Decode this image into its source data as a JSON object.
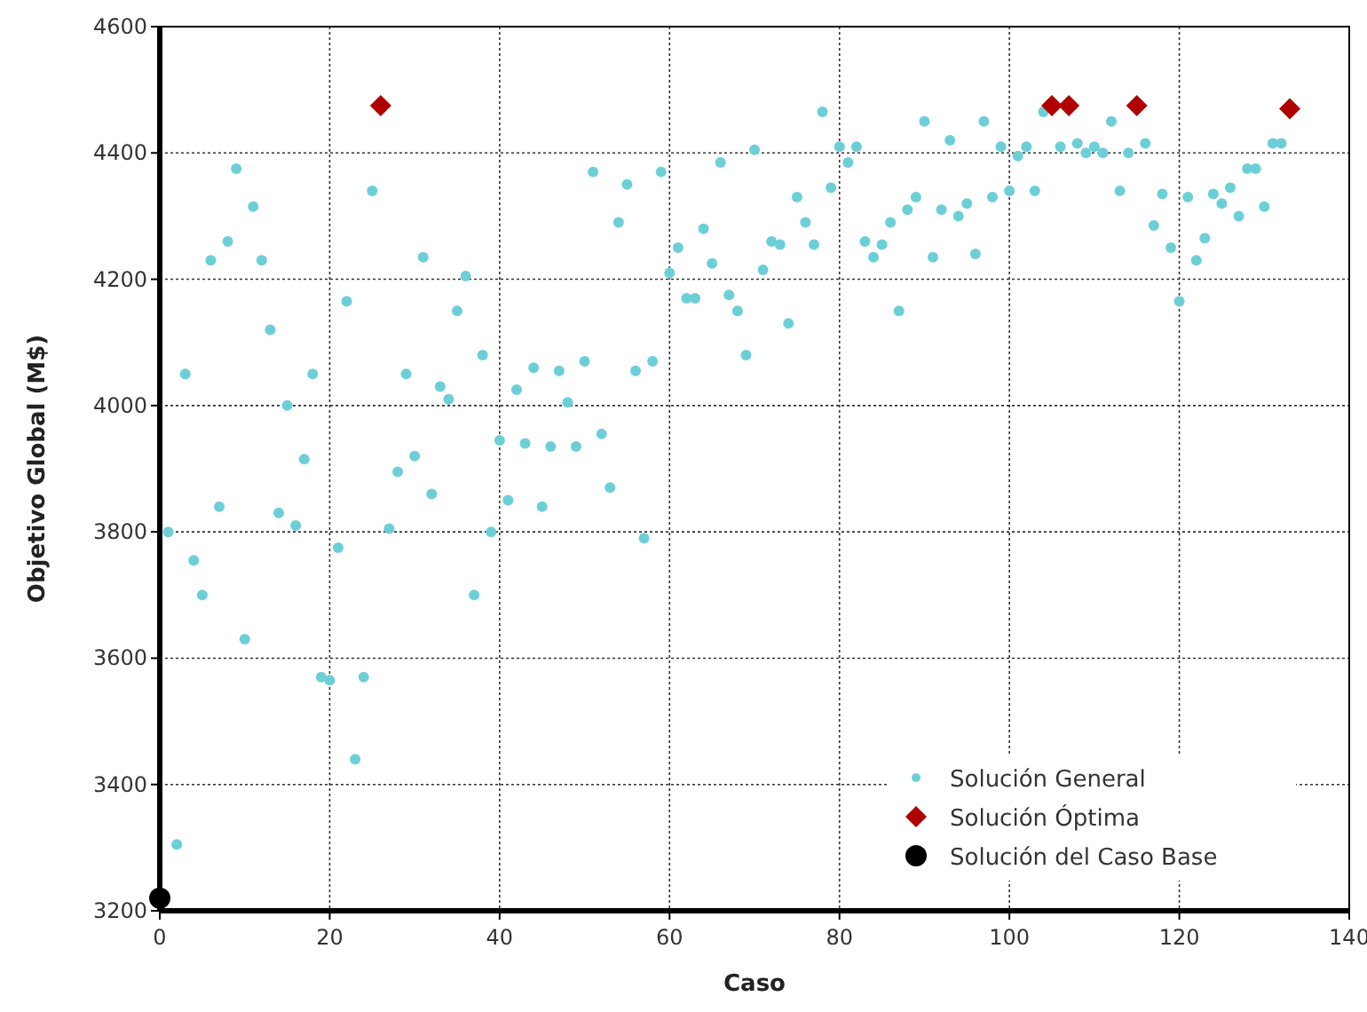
{
  "chart_data": {
    "type": "scatter",
    "xlabel": "Caso",
    "ylabel": "Objetivo Global (M$)",
    "xlim": [
      0,
      140
    ],
    "xticks": [
      0,
      20,
      40,
      60,
      80,
      100,
      120,
      140
    ],
    "ylim": [
      3200,
      4600
    ],
    "yticks": [
      3200,
      3400,
      3600,
      3800,
      4000,
      4200,
      4400,
      4600
    ],
    "grid": true,
    "legend": "bottom right",
    "series": [
      {
        "name": "Solución General",
        "color": "#6ccfd8",
        "marker": "circle",
        "x": [
          1,
          2,
          3,
          4,
          5,
          6,
          7,
          8,
          9,
          10,
          11,
          12,
          13,
          14,
          15,
          16,
          17,
          18,
          19,
          20,
          21,
          22,
          23,
          24,
          25,
          27,
          28,
          29,
          30,
          31,
          32,
          33,
          34,
          35,
          36,
          37,
          38,
          39,
          40,
          41,
          42,
          43,
          44,
          45,
          46,
          47,
          48,
          49,
          50,
          51,
          52,
          53,
          54,
          55,
          56,
          57,
          58,
          59,
          60,
          61,
          62,
          63,
          64,
          65,
          66,
          67,
          68,
          69,
          70,
          71,
          72,
          73,
          74,
          75,
          76,
          77,
          78,
          79,
          80,
          81,
          82,
          83,
          84,
          85,
          86,
          87,
          88,
          89,
          90,
          91,
          92,
          93,
          94,
          95,
          96,
          97,
          98,
          99,
          100,
          101,
          102,
          103,
          104,
          106,
          108,
          109,
          110,
          111,
          112,
          113,
          114,
          116,
          117,
          118,
          119,
          120,
          121,
          122,
          123,
          124,
          125,
          126,
          127,
          128,
          129,
          130,
          131,
          132
        ],
        "values": [
          3800,
          3305,
          4050,
          3755,
          3700,
          4230,
          3840,
          4260,
          4375,
          3630,
          4315,
          4230,
          4120,
          3830,
          4000,
          3810,
          3915,
          4050,
          3570,
          3565,
          3775,
          4165,
          3440,
          3570,
          4340,
          3805,
          3895,
          4050,
          3920,
          4235,
          3860,
          4030,
          4010,
          4150,
          4205,
          3700,
          4080,
          3800,
          3945,
          3850,
          4025,
          3940,
          4060,
          3840,
          3935,
          4055,
          4005,
          3935,
          4070,
          4370,
          3955,
          3870,
          4290,
          4350,
          4055,
          3790,
          4070,
          4370,
          4210,
          4250,
          4170,
          4170,
          4280,
          4225,
          4385,
          4175,
          4150,
          4080,
          4405,
          4215,
          4260,
          4255,
          4130,
          4330,
          4290,
          4255,
          4465,
          4345,
          4410,
          4385,
          4410,
          4260,
          4235,
          4255,
          4290,
          4150,
          4310,
          4330,
          4450,
          4235,
          4310,
          4420,
          4300,
          4320,
          4240,
          4450,
          4330,
          4410,
          4340,
          4395,
          4410,
          4340,
          4465,
          4410,
          4415,
          4400,
          4410,
          4400,
          4450,
          4340,
          4400,
          4415,
          4285,
          4335,
          4250,
          4165,
          4330,
          4230,
          4265,
          4335,
          4320,
          4345,
          4300,
          4375,
          4375,
          4315,
          4415,
          4415
        ]
      },
      {
        "name": "Solución Óptima",
        "color": "#b00000",
        "marker": "diamond",
        "x": [
          26,
          105,
          107,
          115,
          133
        ],
        "values": [
          4475,
          4475,
          4475,
          4475,
          4470
        ]
      },
      {
        "name": "Solución del Caso Base",
        "color": "#000000",
        "marker": "circle_large",
        "x": [
          0
        ],
        "values": [
          3220
        ]
      }
    ]
  }
}
